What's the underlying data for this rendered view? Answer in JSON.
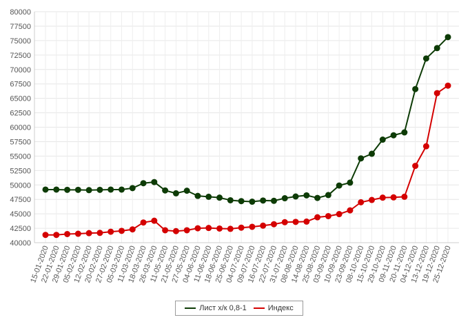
{
  "chart_data": {
    "type": "line",
    "title": "",
    "xlabel": "",
    "ylabel": "",
    "ylim": [
      40000,
      80000
    ],
    "yticks": [
      40000,
      42500,
      45000,
      47500,
      50000,
      52500,
      55000,
      57500,
      60000,
      62500,
      65000,
      67500,
      70000,
      72500,
      75000,
      77500,
      80000
    ],
    "grid": true,
    "legend_position": "bottom-center",
    "x": [
      "15-01-2020",
      "22-01-2020",
      "29-01-2020",
      "05-02-2020",
      "12-02-2020",
      "20-02-2020",
      "27-02-2020",
      "05-03-2020",
      "11-03-2020",
      "18-03-2020",
      "26-03-2020",
      "11-05-2020",
      "21-05-2020",
      "27-05-2020",
      "04-06-2020",
      "11-06-2020",
      "18-06-2020",
      "25-06-2020",
      "04-07-2020",
      "09-07-2020",
      "16-07-2020",
      "22-07-2020",
      "31-07-2020",
      "08-08-2020",
      "14-08-2020",
      "25-08-2020",
      "03-09-2020",
      "10-09-2020",
      "23-09-2020",
      "08-10-2020",
      "15-10-2020",
      "29-10-2020",
      "09-11-2020",
      "20-11-2020",
      "04-12-2020",
      "13-12-2020",
      "19-12-2020",
      "25-12-2020"
    ],
    "series": [
      {
        "name": "Лист х/к 0,8-1",
        "color": "#0d3b06",
        "values": [
          49200,
          49200,
          49150,
          49150,
          49100,
          49150,
          49200,
          49200,
          49450,
          50300,
          50500,
          49050,
          48550,
          49000,
          48100,
          47950,
          47800,
          47350,
          47200,
          47100,
          47300,
          47250,
          47700,
          48000,
          48200,
          47750,
          48250,
          49900,
          50400,
          54600,
          55400,
          57850,
          58600,
          59100,
          66600,
          71900,
          73700,
          75600
        ]
      },
      {
        "name": "Индекс",
        "color": "#d40000",
        "values": [
          41350,
          41350,
          41500,
          41550,
          41650,
          41700,
          41900,
          42050,
          42300,
          43500,
          43800,
          42150,
          42000,
          42150,
          42500,
          42550,
          42450,
          42400,
          42600,
          42750,
          42950,
          43200,
          43550,
          43600,
          43650,
          44400,
          44600,
          44950,
          45600,
          47000,
          47400,
          47800,
          47850,
          47950,
          53300,
          56700,
          65900,
          67200
        ]
      }
    ]
  }
}
